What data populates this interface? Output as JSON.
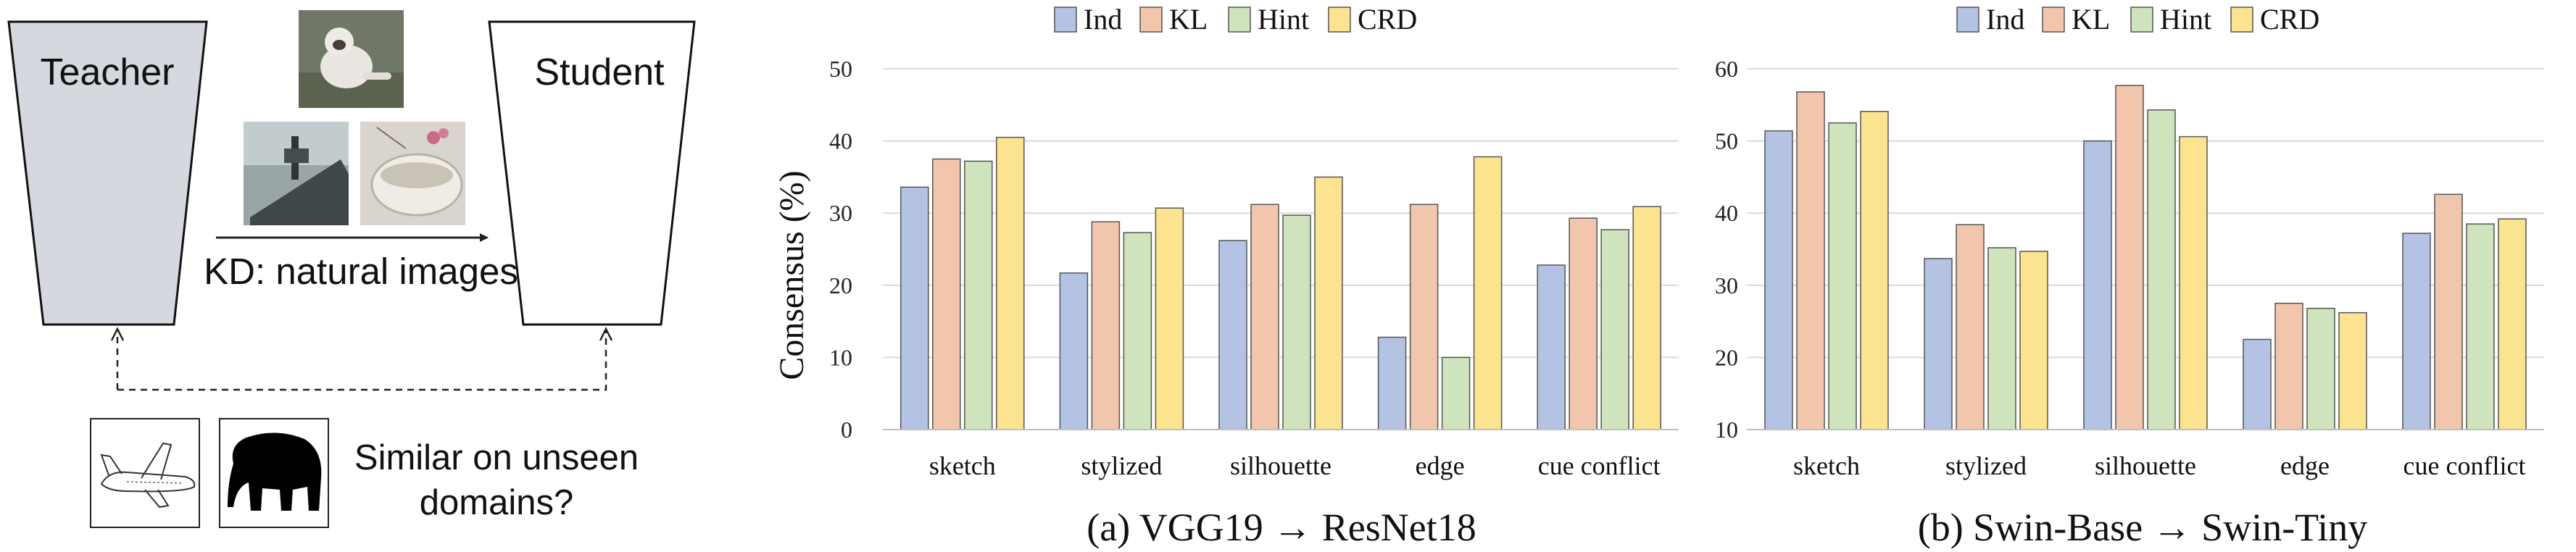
{
  "diagram": {
    "teacher_label": "Teacher",
    "student_label": "Student",
    "kd_label": "KD: natural images",
    "question_line1": "Similar on unseen",
    "question_line2": "domains?"
  },
  "legend": {
    "entries": [
      "Ind",
      "KL",
      "Hint",
      "CRD"
    ]
  },
  "colors": {
    "Ind": "#b4c2e3",
    "KL": "#f2c6ad",
    "Hint": "#cfe3bd",
    "CRD": "#fbe38f",
    "teacher_fill": "#d5d9df",
    "grid": "#d9d9d9"
  },
  "chart_data": [
    {
      "type": "bar",
      "title": "(a) VGG19 → ResNet18",
      "xlabel": "",
      "ylabel": "Consensus (%)",
      "ylim": [
        0,
        50
      ],
      "yticks": [
        0,
        10,
        20,
        30,
        40,
        50
      ],
      "grid": true,
      "legend_position": "top",
      "categories": [
        "sketch",
        "stylized",
        "silhouette",
        "edge",
        "cue conflict"
      ],
      "series": [
        {
          "name": "Ind",
          "values": [
            33.6,
            21.7,
            26.2,
            12.8,
            22.8
          ]
        },
        {
          "name": "KL",
          "values": [
            37.5,
            28.8,
            31.2,
            31.2,
            29.3
          ]
        },
        {
          "name": "Hint",
          "values": [
            37.2,
            27.3,
            29.7,
            10.0,
            27.7
          ]
        },
        {
          "name": "CRD",
          "values": [
            40.5,
            30.7,
            35.0,
            37.8,
            30.9
          ]
        }
      ]
    },
    {
      "type": "bar",
      "title": "(b) Swin-Base → Swin-Tiny",
      "xlabel": "",
      "ylabel": "",
      "ylim": [
        10,
        60
      ],
      "yticks": [
        10,
        20,
        30,
        40,
        50,
        60
      ],
      "grid": true,
      "legend_position": "top",
      "categories": [
        "sketch",
        "stylized",
        "silhouette",
        "edge",
        "cue conflict"
      ],
      "series": [
        {
          "name": "Ind",
          "values": [
            51.4,
            33.7,
            50.0,
            22.5,
            37.2
          ]
        },
        {
          "name": "KL",
          "values": [
            56.8,
            38.4,
            57.7,
            27.5,
            42.6
          ]
        },
        {
          "name": "Hint",
          "values": [
            52.5,
            35.2,
            54.3,
            26.8,
            38.5
          ]
        },
        {
          "name": "CRD",
          "values": [
            54.1,
            34.7,
            50.6,
            26.2,
            39.2
          ]
        }
      ]
    }
  ]
}
